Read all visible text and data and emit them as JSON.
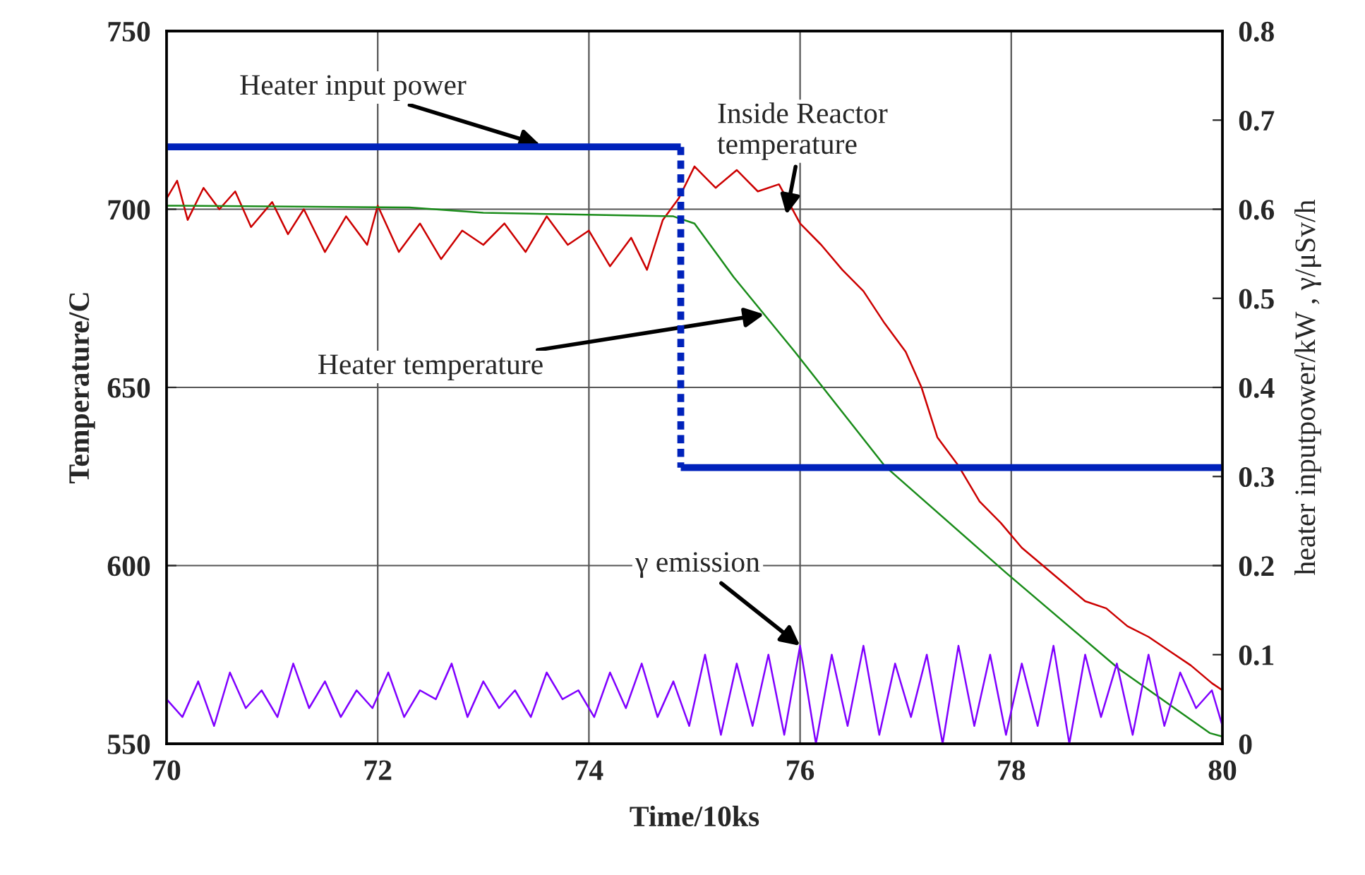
{
  "chart_data": {
    "type": "line",
    "xlabel": "Time/10ks",
    "ylabel": "Temperature/C",
    "y2label": "heater inputpower/kW , γ/μSv/h",
    "xlim": [
      70,
      80
    ],
    "xticks": [
      70,
      72,
      74,
      76,
      78,
      80
    ],
    "ylim": [
      550,
      750
    ],
    "yticks": [
      550,
      600,
      650,
      700,
      750
    ],
    "y2lim": [
      0,
      0.8
    ],
    "y2ticks": [
      0,
      0.1,
      0.2,
      0.3,
      0.4,
      0.5,
      0.6,
      0.7,
      0.8
    ],
    "grid": true,
    "series": [
      {
        "color": "#cc0000",
        "x": [
          70.0,
          70.1,
          70.2,
          70.35,
          70.5,
          70.65,
          70.8,
          71.0,
          71.15,
          71.3,
          71.5,
          71.7,
          71.9,
          72.0,
          72.2,
          72.4,
          72.6,
          72.8,
          73.0,
          73.2,
          73.4,
          73.6,
          73.8,
          74.0,
          74.2,
          74.4,
          74.55,
          74.7,
          74.85,
          75.0,
          75.2,
          75.4,
          75.6,
          75.8,
          76.0,
          76.2,
          76.4,
          76.6,
          76.8,
          77.0,
          77.15,
          77.3,
          77.5,
          77.7,
          77.9,
          78.1,
          78.3,
          78.5,
          78.7,
          78.9,
          79.1,
          79.3,
          79.5,
          79.7,
          79.9,
          80.0
        ],
        "values": [
          703,
          708,
          697,
          706,
          700,
          705,
          695,
          702,
          693,
          700,
          688,
          698,
          690,
          701,
          688,
          696,
          686,
          694,
          690,
          696,
          688,
          698,
          690,
          694,
          684,
          692,
          683,
          697,
          703,
          712,
          706,
          711,
          705,
          707,
          696,
          690,
          683,
          677,
          668,
          660,
          650,
          636,
          628,
          618,
          612,
          605,
          600,
          595,
          590,
          588,
          583,
          580,
          576,
          572,
          567,
          565
        ]
      },
      {
        "color": "#1a8c1a",
        "x": [
          70.0,
          72.3,
          73.0,
          74.8,
          75.0,
          75.37,
          75.95,
          76.8,
          77.95,
          79.02,
          79.88,
          80.0
        ],
        "values": [
          701,
          700.5,
          699,
          698,
          696,
          681,
          660,
          628,
          598,
          571,
          553,
          552
        ]
      },
      {
        "color": "#0022bb",
        "axis": "y2",
        "line_style": "solid",
        "x": [
          70,
          74.87
        ],
        "values": [
          0.67,
          0.67
        ]
      },
      {
        "color": "#0022bb",
        "axis": "y2",
        "line_style": "dashed",
        "x": [
          74.87,
          74.87
        ],
        "values": [
          0.67,
          0.31
        ]
      },
      {
        "color": "#0022bb",
        "axis": "y2",
        "line_style": "solid",
        "x": [
          74.87,
          80
        ],
        "values": [
          0.31,
          0.31
        ]
      },
      {
        "color": "#8000ff",
        "axis": "y2",
        "x": [
          70.0,
          70.15,
          70.3,
          70.45,
          70.6,
          70.75,
          70.9,
          71.05,
          71.2,
          71.35,
          71.5,
          71.65,
          71.8,
          71.95,
          72.1,
          72.25,
          72.4,
          72.55,
          72.7,
          72.85,
          73.0,
          73.15,
          73.3,
          73.45,
          73.6,
          73.75,
          73.9,
          74.05,
          74.2,
          74.35,
          74.5,
          74.65,
          74.8,
          74.95,
          75.1,
          75.25,
          75.4,
          75.55,
          75.7,
          75.85,
          76.0,
          76.15,
          76.3,
          76.45,
          76.6,
          76.75,
          76.9,
          77.05,
          77.2,
          77.35,
          77.5,
          77.65,
          77.8,
          77.95,
          78.1,
          78.25,
          78.4,
          78.55,
          78.7,
          78.85,
          79.0,
          79.15,
          79.3,
          79.45,
          79.6,
          79.75,
          79.9,
          80.0
        ],
        "values": [
          0.05,
          0.03,
          0.07,
          0.02,
          0.08,
          0.04,
          0.06,
          0.03,
          0.09,
          0.04,
          0.07,
          0.03,
          0.06,
          0.04,
          0.08,
          0.03,
          0.06,
          0.05,
          0.09,
          0.03,
          0.07,
          0.04,
          0.06,
          0.03,
          0.08,
          0.05,
          0.06,
          0.03,
          0.08,
          0.04,
          0.09,
          0.03,
          0.07,
          0.02,
          0.1,
          0.01,
          0.09,
          0.02,
          0.1,
          0.01,
          0.11,
          0.0,
          0.1,
          0.02,
          0.11,
          0.01,
          0.09,
          0.03,
          0.1,
          0.0,
          0.11,
          0.02,
          0.1,
          0.01,
          0.09,
          0.02,
          0.11,
          0.0,
          0.1,
          0.03,
          0.09,
          0.01,
          0.1,
          0.02,
          0.08,
          0.04,
          0.06,
          0.02
        ]
      }
    ],
    "annotations": [
      {
        "text": "Heater input power",
        "x": 73.54,
        "y": 718
      },
      {
        "text": "Inside Reactor\ntemperature",
        "x": 75.87,
        "y": 698.5
      },
      {
        "text": "Heater temperature",
        "x": 75.66,
        "y": 670.5
      },
      {
        "text": "γ emission",
        "x": 76.0,
        "y": 577.5
      }
    ]
  }
}
